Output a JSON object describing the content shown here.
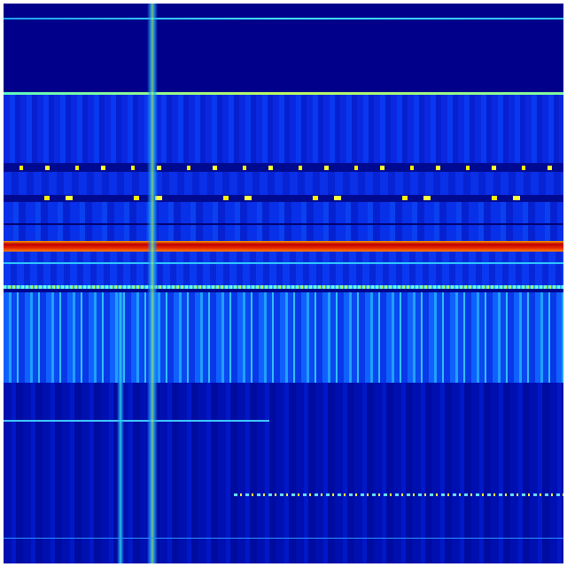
{
  "heatmap": {
    "colormap": "jet",
    "colors": {
      "background": "#00008f",
      "low": "#0000c8",
      "mid_low": "#0a3cf0",
      "mid": "#00c8ff",
      "mid_high": "#ffff00",
      "high": "#c80000"
    }
  }
}
